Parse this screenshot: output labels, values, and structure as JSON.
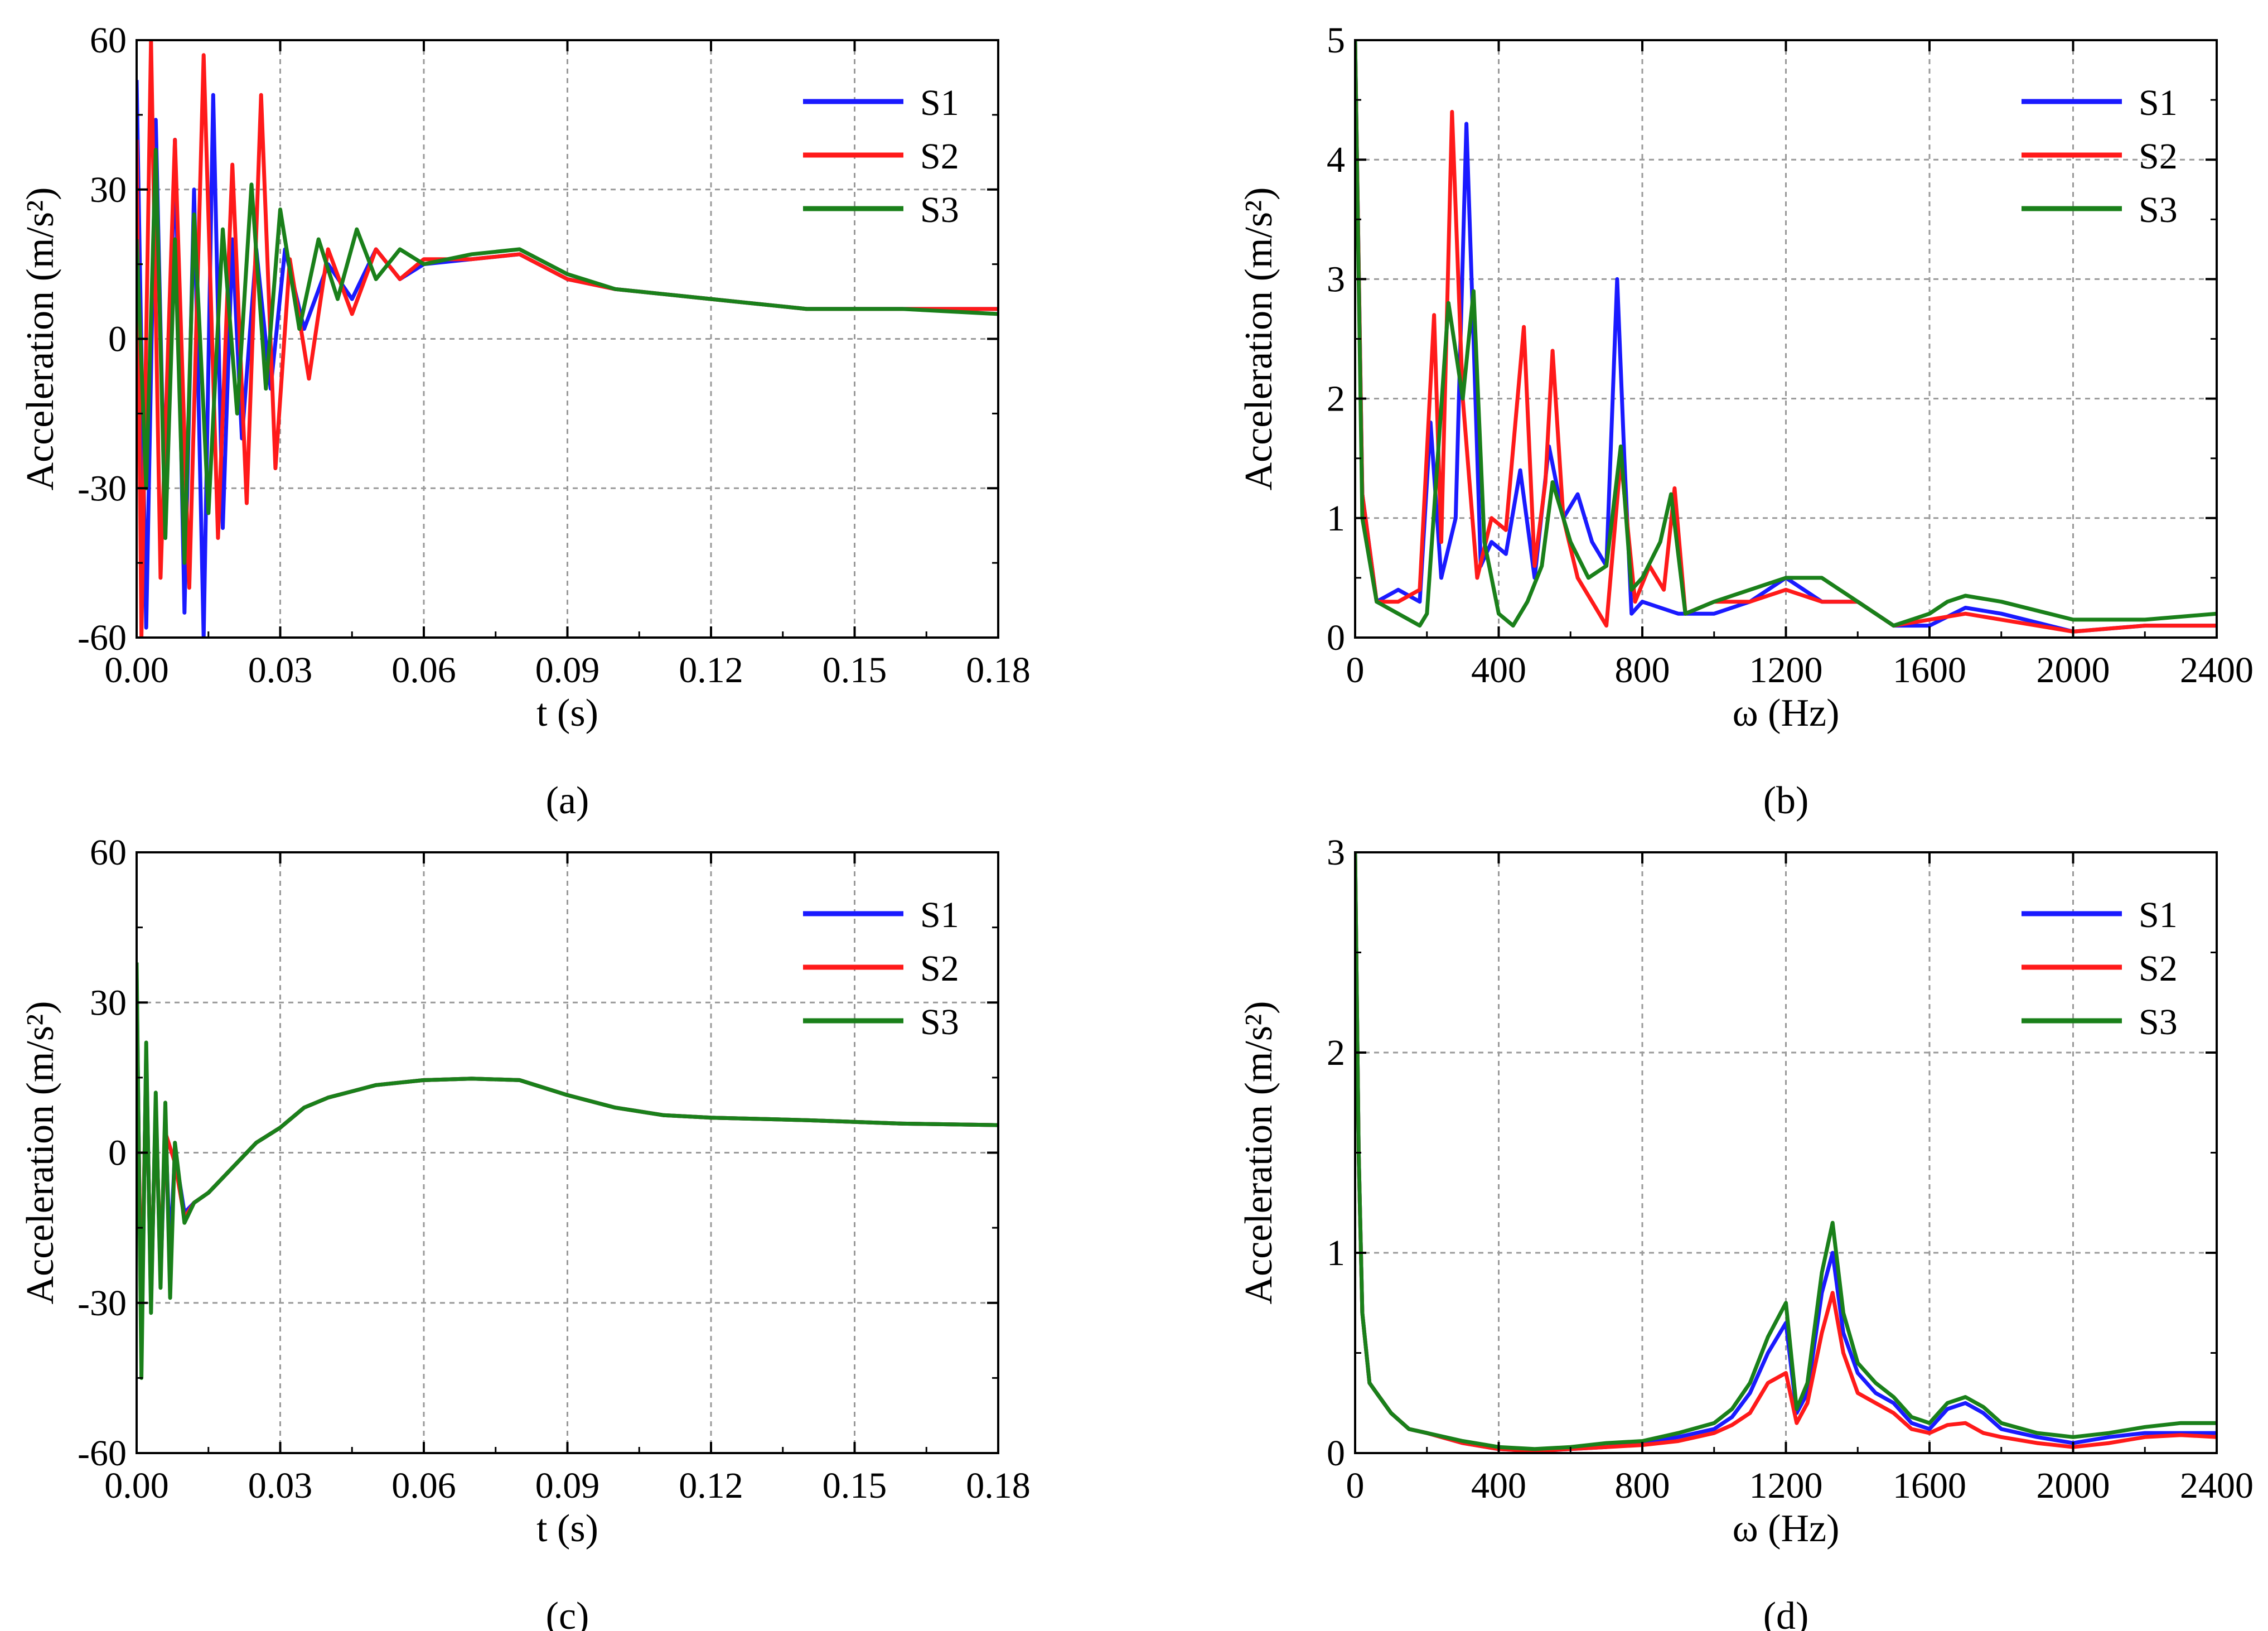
{
  "figure": {
    "captions": [
      "(a)",
      "(b)",
      "(c)",
      "(d)"
    ]
  },
  "colors": {
    "S1": "#1a1aff",
    "S2": "#ff1a1a",
    "S3": "#1a801a",
    "grid": "#9a9a9a",
    "axis": "#000000"
  },
  "chart_data": [
    {
      "id": "a",
      "type": "line",
      "caption": "(a)",
      "xlabel": "t (s)",
      "ylabel": "Acceleration (m/s²)",
      "xlim": [
        0,
        0.18
      ],
      "ylim": [
        -60,
        60
      ],
      "xticks": [
        0.0,
        0.03,
        0.06,
        0.09,
        0.12,
        0.15,
        0.18
      ],
      "xtick_labels": [
        "0.00",
        "0.03",
        "0.06",
        "0.09",
        "0.12",
        "0.15",
        "0.18"
      ],
      "yticks": [
        -60,
        -30,
        0,
        30,
        60
      ],
      "ytick_labels": [
        "-60",
        "-30",
        "0",
        "30",
        "60"
      ],
      "legend": {
        "position": "top-right",
        "entries": [
          "S1",
          "S2",
          "S3"
        ]
      },
      "grid": true,
      "series": [
        {
          "name": "S1",
          "color": "#1a1aff",
          "x": [
            0,
            0.002,
            0.004,
            0.006,
            0.008,
            0.01,
            0.012,
            0.014,
            0.016,
            0.018,
            0.02,
            0.022,
            0.025,
            0.028,
            0.031,
            0.035,
            0.04,
            0.045,
            0.05,
            0.055,
            0.06,
            0.07,
            0.08,
            0.09,
            0.1,
            0.11,
            0.12,
            0.14,
            0.16,
            0.18
          ],
          "y": [
            52,
            -58,
            44,
            -40,
            40,
            -55,
            30,
            -60,
            49,
            -38,
            20,
            -20,
            18,
            -10,
            18,
            2,
            15,
            8,
            18,
            12,
            15,
            16,
            17,
            12,
            10,
            9,
            8,
            6,
            6,
            6
          ]
        },
        {
          "name": "S2",
          "color": "#ff1a1a",
          "x": [
            0,
            0.001,
            0.003,
            0.005,
            0.008,
            0.011,
            0.014,
            0.017,
            0.02,
            0.023,
            0.026,
            0.029,
            0.032,
            0.036,
            0.04,
            0.045,
            0.05,
            0.055,
            0.06,
            0.07,
            0.08,
            0.09,
            0.1,
            0.11,
            0.12,
            0.14,
            0.16,
            0.18
          ],
          "y": [
            40,
            -60,
            60,
            -48,
            40,
            -50,
            57,
            -40,
            35,
            -33,
            49,
            -26,
            16,
            -8,
            18,
            5,
            18,
            12,
            16,
            16,
            17,
            12,
            10,
            9,
            8,
            6,
            6,
            6
          ]
        },
        {
          "name": "S3",
          "color": "#1a801a",
          "x": [
            0,
            0.002,
            0.004,
            0.006,
            0.008,
            0.01,
            0.012,
            0.015,
            0.018,
            0.021,
            0.024,
            0.027,
            0.03,
            0.034,
            0.038,
            0.042,
            0.046,
            0.05,
            0.055,
            0.06,
            0.07,
            0.08,
            0.09,
            0.1,
            0.11,
            0.12,
            0.14,
            0.16,
            0.18
          ],
          "y": [
            20,
            -30,
            38,
            -40,
            20,
            -45,
            25,
            -35,
            22,
            -15,
            31,
            -10,
            26,
            2,
            20,
            8,
            22,
            12,
            18,
            15,
            17,
            18,
            13,
            10,
            9,
            8,
            6,
            6,
            5
          ]
        }
      ]
    },
    {
      "id": "b",
      "type": "line",
      "caption": "(b)",
      "xlabel": "ω (Hz)",
      "ylabel": "Acceleration (m/s²)",
      "xlim": [
        0,
        2400
      ],
      "ylim": [
        0,
        5
      ],
      "xticks": [
        0,
        400,
        800,
        1200,
        1600,
        2000,
        2400
      ],
      "xtick_labels": [
        "0",
        "400",
        "800",
        "1200",
        "1600",
        "2000",
        "2400"
      ],
      "yticks": [
        0,
        1,
        2,
        3,
        4,
        5
      ],
      "ytick_labels": [
        "0",
        "1",
        "2",
        "3",
        "4",
        "5"
      ],
      "legend": {
        "position": "top-right",
        "entries": [
          "S1",
          "S2",
          "S3"
        ]
      },
      "grid": true,
      "series": [
        {
          "name": "S1",
          "color": "#1a1aff",
          "x": [
            0,
            20,
            60,
            120,
            180,
            210,
            240,
            280,
            310,
            330,
            350,
            380,
            420,
            460,
            500,
            540,
            580,
            620,
            660,
            700,
            730,
            750,
            770,
            800,
            900,
            1000,
            1100,
            1200,
            1300,
            1400,
            1500,
            1600,
            1700,
            1800,
            2000,
            2200,
            2400
          ],
          "y": [
            5.0,
            1.2,
            0.3,
            0.4,
            0.3,
            1.8,
            0.5,
            1.0,
            4.3,
            2.5,
            0.6,
            0.8,
            0.7,
            1.4,
            0.5,
            1.6,
            1.0,
            1.2,
            0.8,
            0.6,
            3.0,
            1.5,
            0.2,
            0.3,
            0.2,
            0.2,
            0.3,
            0.5,
            0.3,
            0.3,
            0.1,
            0.1,
            0.25,
            0.2,
            0.05,
            0.1,
            0.1
          ]
        },
        {
          "name": "S2",
          "color": "#ff1a1a",
          "x": [
            0,
            20,
            60,
            120,
            180,
            220,
            240,
            270,
            300,
            340,
            380,
            420,
            470,
            500,
            530,
            550,
            580,
            620,
            660,
            700,
            740,
            780,
            820,
            860,
            890,
            920,
            1000,
            1100,
            1200,
            1300,
            1400,
            1500,
            1600,
            1700,
            1800,
            2000,
            2200,
            2400
          ],
          "y": [
            5.0,
            1.2,
            0.3,
            0.3,
            0.4,
            2.7,
            0.8,
            4.4,
            2.0,
            0.5,
            1.0,
            0.9,
            2.6,
            0.6,
            1.3,
            2.4,
            1.0,
            0.5,
            0.3,
            0.1,
            1.5,
            0.3,
            0.6,
            0.4,
            1.25,
            0.2,
            0.3,
            0.3,
            0.4,
            0.3,
            0.3,
            0.1,
            0.15,
            0.2,
            0.15,
            0.05,
            0.1,
            0.1
          ]
        },
        {
          "name": "S3",
          "color": "#1a801a",
          "x": [
            0,
            20,
            60,
            120,
            180,
            200,
            230,
            260,
            300,
            330,
            360,
            400,
            440,
            480,
            520,
            550,
            600,
            650,
            700,
            740,
            770,
            800,
            850,
            880,
            920,
            1000,
            1100,
            1200,
            1300,
            1400,
            1500,
            1600,
            1650,
            1700,
            1800,
            2000,
            2200,
            2400
          ],
          "y": [
            5.0,
            1.0,
            0.3,
            0.2,
            0.1,
            0.2,
            1.5,
            2.8,
            2.0,
            2.9,
            0.8,
            0.2,
            0.1,
            0.3,
            0.6,
            1.3,
            0.8,
            0.5,
            0.6,
            1.6,
            0.4,
            0.5,
            0.8,
            1.2,
            0.2,
            0.3,
            0.4,
            0.5,
            0.5,
            0.3,
            0.1,
            0.2,
            0.3,
            0.35,
            0.3,
            0.15,
            0.15,
            0.2
          ]
        }
      ]
    },
    {
      "id": "c",
      "type": "line",
      "caption": "(c)",
      "xlabel": "t (s)",
      "ylabel": "Acceleration (m/s²)",
      "xlim": [
        0,
        0.18
      ],
      "ylim": [
        -60,
        60
      ],
      "xticks": [
        0.0,
        0.03,
        0.06,
        0.09,
        0.12,
        0.15,
        0.18
      ],
      "xtick_labels": [
        "0.00",
        "0.03",
        "0.06",
        "0.09",
        "0.12",
        "0.15",
        "0.18"
      ],
      "yticks": [
        -60,
        -30,
        0,
        30,
        60
      ],
      "ytick_labels": [
        "-60",
        "-30",
        "0",
        "30",
        "60"
      ],
      "legend": {
        "position": "top-right",
        "entries": [
          "S1",
          "S2",
          "S3"
        ]
      },
      "grid": true,
      "series": [
        {
          "name": "S1",
          "color": "#1a1aff",
          "x": [
            0,
            0.001,
            0.002,
            0.003,
            0.004,
            0.005,
            0.006,
            0.007,
            0.008,
            0.01,
            0.012,
            0.015,
            0.02,
            0.025,
            0.03,
            0.035,
            0.04,
            0.05,
            0.06,
            0.07,
            0.08,
            0.09,
            0.1,
            0.11,
            0.12,
            0.14,
            0.16,
            0.18
          ],
          "y": [
            35,
            -40,
            20,
            -30,
            10,
            -25,
            5,
            -20,
            0,
            -12,
            -10,
            -8,
            -3,
            2,
            5,
            9,
            11,
            13.5,
            14.5,
            14.8,
            14.5,
            11.5,
            9,
            7.5,
            7,
            6.5,
            5.8,
            5.5
          ]
        },
        {
          "name": "S2",
          "color": "#ff1a1a",
          "x": [
            0,
            0.001,
            0.002,
            0.003,
            0.004,
            0.005,
            0.006,
            0.008,
            0.01,
            0.012,
            0.015,
            0.02,
            0.025,
            0.03,
            0.035,
            0.04,
            0.05,
            0.06,
            0.07,
            0.08,
            0.09,
            0.1,
            0.11,
            0.12,
            0.14,
            0.16,
            0.18
          ],
          "y": [
            30,
            -35,
            18,
            -28,
            8,
            -22,
            4,
            -2,
            -13,
            -10,
            -8,
            -3,
            2,
            5,
            9,
            11,
            13.5,
            14.5,
            14.8,
            14.5,
            11.5,
            9,
            7.5,
            7,
            6.5,
            5.8,
            5.5
          ]
        },
        {
          "name": "S3",
          "color": "#1a801a",
          "x": [
            0,
            0.001,
            0.002,
            0.003,
            0.004,
            0.005,
            0.006,
            0.007,
            0.008,
            0.01,
            0.012,
            0.015,
            0.02,
            0.025,
            0.03,
            0.035,
            0.04,
            0.05,
            0.06,
            0.07,
            0.08,
            0.09,
            0.1,
            0.11,
            0.12,
            0.14,
            0.16,
            0.18
          ],
          "y": [
            38,
            -45,
            22,
            -32,
            12,
            -27,
            10,
            -29,
            2,
            -14,
            -10,
            -8,
            -3,
            2,
            5,
            9,
            11,
            13.5,
            14.5,
            14.8,
            14.5,
            11.5,
            9,
            7.5,
            7,
            6.5,
            5.8,
            5.5
          ]
        }
      ]
    },
    {
      "id": "d",
      "type": "line",
      "caption": "(d)",
      "xlabel": "ω (Hz)",
      "ylabel": "Acceleration (m/s²)",
      "xlim": [
        0,
        2400
      ],
      "ylim": [
        0,
        3
      ],
      "xticks": [
        0,
        400,
        800,
        1200,
        1600,
        2000,
        2400
      ],
      "xtick_labels": [
        "0",
        "400",
        "800",
        "1200",
        "1600",
        "2000",
        "2400"
      ],
      "yticks": [
        0,
        1,
        2,
        3
      ],
      "ytick_labels": [
        "0",
        "1",
        "2",
        "3"
      ],
      "legend": {
        "position": "top-right",
        "entries": [
          "S1",
          "S2",
          "S3"
        ]
      },
      "grid": true,
      "series": [
        {
          "name": "S1",
          "color": "#1a1aff",
          "x": [
            0,
            10,
            20,
            40,
            60,
            100,
            150,
            200,
            300,
            400,
            500,
            600,
            700,
            800,
            900,
            1000,
            1050,
            1100,
            1150,
            1200,
            1230,
            1260,
            1300,
            1330,
            1360,
            1400,
            1450,
            1500,
            1550,
            1600,
            1650,
            1700,
            1750,
            1800,
            1900,
            2000,
            2100,
            2200,
            2300,
            2400
          ],
          "y": [
            3.0,
            1.5,
            0.7,
            0.35,
            0.3,
            0.2,
            0.12,
            0.1,
            0.05,
            0.02,
            0.01,
            0.02,
            0.03,
            0.05,
            0.08,
            0.12,
            0.18,
            0.3,
            0.5,
            0.65,
            0.2,
            0.3,
            0.8,
            1.0,
            0.6,
            0.4,
            0.3,
            0.25,
            0.15,
            0.12,
            0.22,
            0.25,
            0.2,
            0.12,
            0.08,
            0.05,
            0.08,
            0.1,
            0.1,
            0.1
          ]
        },
        {
          "name": "S2",
          "color": "#ff1a1a",
          "x": [
            0,
            10,
            20,
            40,
            60,
            100,
            150,
            200,
            300,
            400,
            500,
            600,
            700,
            800,
            900,
            1000,
            1050,
            1100,
            1150,
            1200,
            1230,
            1260,
            1300,
            1330,
            1360,
            1400,
            1450,
            1500,
            1550,
            1600,
            1650,
            1700,
            1750,
            1800,
            1900,
            2000,
            2100,
            2200,
            2300,
            2400
          ],
          "y": [
            3.0,
            1.5,
            0.7,
            0.35,
            0.3,
            0.2,
            0.12,
            0.1,
            0.05,
            0.02,
            0.01,
            0.02,
            0.03,
            0.04,
            0.06,
            0.1,
            0.14,
            0.2,
            0.35,
            0.4,
            0.15,
            0.25,
            0.6,
            0.8,
            0.5,
            0.3,
            0.25,
            0.2,
            0.12,
            0.1,
            0.14,
            0.15,
            0.1,
            0.08,
            0.05,
            0.03,
            0.05,
            0.08,
            0.09,
            0.08
          ]
        },
        {
          "name": "S3",
          "color": "#1a801a",
          "x": [
            0,
            10,
            20,
            40,
            60,
            100,
            150,
            200,
            300,
            400,
            500,
            600,
            700,
            800,
            900,
            1000,
            1050,
            1100,
            1150,
            1200,
            1230,
            1260,
            1300,
            1330,
            1360,
            1400,
            1450,
            1500,
            1550,
            1600,
            1650,
            1700,
            1750,
            1800,
            1900,
            2000,
            2100,
            2200,
            2300,
            2400
          ],
          "y": [
            3.0,
            1.5,
            0.7,
            0.35,
            0.3,
            0.2,
            0.12,
            0.1,
            0.06,
            0.03,
            0.02,
            0.03,
            0.05,
            0.06,
            0.1,
            0.15,
            0.22,
            0.35,
            0.58,
            0.75,
            0.22,
            0.35,
            0.9,
            1.15,
            0.7,
            0.45,
            0.35,
            0.28,
            0.18,
            0.15,
            0.25,
            0.28,
            0.23,
            0.15,
            0.1,
            0.08,
            0.1,
            0.13,
            0.15,
            0.15
          ]
        }
      ]
    }
  ]
}
